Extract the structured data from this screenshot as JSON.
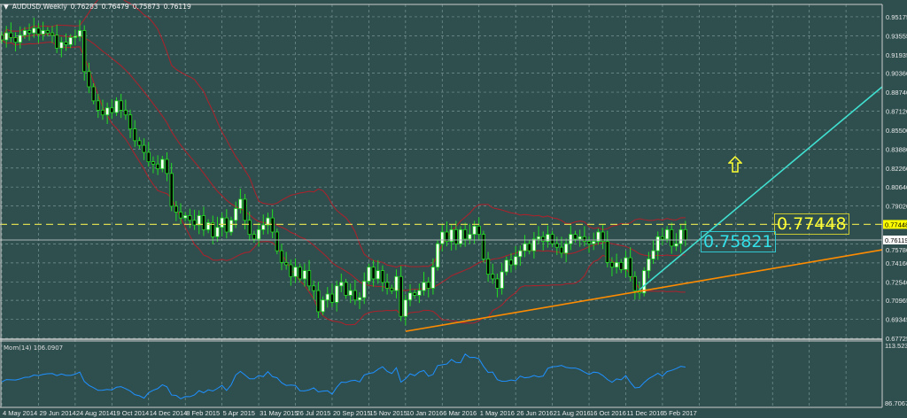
{
  "header": {
    "menu_icon": "triangle-down-icon",
    "symbol": "AUDUSD,Weekly",
    "open": "0.76283",
    "high": "0.76479",
    "low": "0.75873",
    "close": "0.76119"
  },
  "annotations": {
    "yellow_label": "0.77448",
    "cyan_label": "0.75821",
    "arrow_icon": "up-arrow-icon"
  },
  "colors": {
    "background": "#2f4f4f",
    "grid": "#7a9494",
    "candle_outline": "#22dd22",
    "bull_body": "#ffffff",
    "bear_body": "#000000",
    "bollinger": "#b0202a",
    "orange_trendline": "#ff8c00",
    "cyan_trendline": "#40e0d0",
    "level_line": "#d8d850",
    "momentum": "#1e90ff"
  },
  "chart_data": [
    {
      "type": "candlestick",
      "title": "AUDUSD,Weekly",
      "start_date": "4 May 2014",
      "interval": "weekly",
      "closes": [
        0.932,
        0.938,
        0.934,
        0.93,
        0.936,
        0.94,
        0.938,
        0.942,
        0.937,
        0.94,
        0.938,
        0.936,
        0.925,
        0.93,
        0.928,
        0.934,
        0.935,
        0.94,
        0.905,
        0.892,
        0.88,
        0.872,
        0.868,
        0.874,
        0.87,
        0.88,
        0.872,
        0.868,
        0.856,
        0.846,
        0.842,
        0.836,
        0.828,
        0.826,
        0.822,
        0.83,
        0.818,
        0.79,
        0.785,
        0.78,
        0.782,
        0.778,
        0.774,
        0.782,
        0.77,
        0.776,
        0.764,
        0.772,
        0.78,
        0.768,
        0.778,
        0.788,
        0.796,
        0.778,
        0.766,
        0.762,
        0.77,
        0.774,
        0.78,
        0.768,
        0.752,
        0.742,
        0.74,
        0.73,
        0.738,
        0.728,
        0.735,
        0.722,
        0.718,
        0.7,
        0.71,
        0.715,
        0.708,
        0.722,
        0.725,
        0.714,
        0.718,
        0.71,
        0.712,
        0.726,
        0.738,
        0.728,
        0.735,
        0.725,
        0.72,
        0.718,
        0.73,
        0.696,
        0.71,
        0.716,
        0.714,
        0.718,
        0.725,
        0.72,
        0.738,
        0.758,
        0.768,
        0.76,
        0.77,
        0.758,
        0.77,
        0.762,
        0.766,
        0.773,
        0.766,
        0.745,
        0.732,
        0.728,
        0.72,
        0.734,
        0.744,
        0.74,
        0.747,
        0.752,
        0.758,
        0.752,
        0.762,
        0.764,
        0.76,
        0.766,
        0.758,
        0.755,
        0.75,
        0.758,
        0.766,
        0.762,
        0.764,
        0.76,
        0.758,
        0.76,
        0.768,
        0.76,
        0.742,
        0.738,
        0.742,
        0.736,
        0.746,
        0.73,
        0.718,
        0.716,
        0.735,
        0.745,
        0.752,
        0.764,
        0.762,
        0.77,
        0.756,
        0.758,
        0.77,
        0.76119
      ],
      "indicator": "Bollinger Bands",
      "ylim": [
        0.6765,
        0.9623
      ],
      "y_ticks": [
        "0.95175",
        "0.93555",
        "0.91935",
        "0.90360",
        "0.88740",
        "0.87120",
        "0.85500",
        "0.83880",
        "0.82260",
        "0.80640",
        "0.79020",
        "0.75780",
        "0.74160",
        "0.72540",
        "0.70965",
        "0.69345",
        "0.67725"
      ],
      "highlight_ticks": [
        {
          "label": "0.77448",
          "value": 0.77448,
          "style": "yellow"
        },
        {
          "label": "0.76119",
          "value": 0.76119,
          "style": "white"
        }
      ],
      "x_ticks": [
        "4 May 2014",
        "29 Jun 2014",
        "24 Aug 2014",
        "19 Oct 2014",
        "14 Dec 2014",
        "8 Feb 2015",
        "5 Apr 2015",
        "31 May 2015",
        "26 Jul 2015",
        "20 Sep 2015",
        "15 Nov 2015",
        "10 Jan 2016",
        "6 Mar 2016",
        "1 May 2016",
        "26 Jun 2016",
        "21 Aug 2016",
        "16 Oct 2016",
        "11 Dec 2016",
        "5 Feb 2017"
      ],
      "horizontal_level": 0.77448,
      "trendlines": [
        {
          "color": "orange",
          "from": {
            "date": "10 Jan 2016",
            "price": 0.6832
          },
          "to": {
            "date": "7 Jan 2018",
            "price": 0.7528
          }
        },
        {
          "color": "cyan",
          "from": {
            "date": "1 Jan 2017",
            "price": 0.7188
          },
          "to": {
            "date": "7 Jan 2018",
            "price": 0.892
          }
        }
      ],
      "grid": true
    },
    {
      "type": "line",
      "title": "Mom(14) 106.0907",
      "label": "Mom(14)",
      "last_value": "106.0907",
      "period": 14,
      "ylim": [
        86.7067,
        113.5236
      ],
      "y_ticks": [
        "113.5236",
        "86.7067"
      ]
    }
  ]
}
